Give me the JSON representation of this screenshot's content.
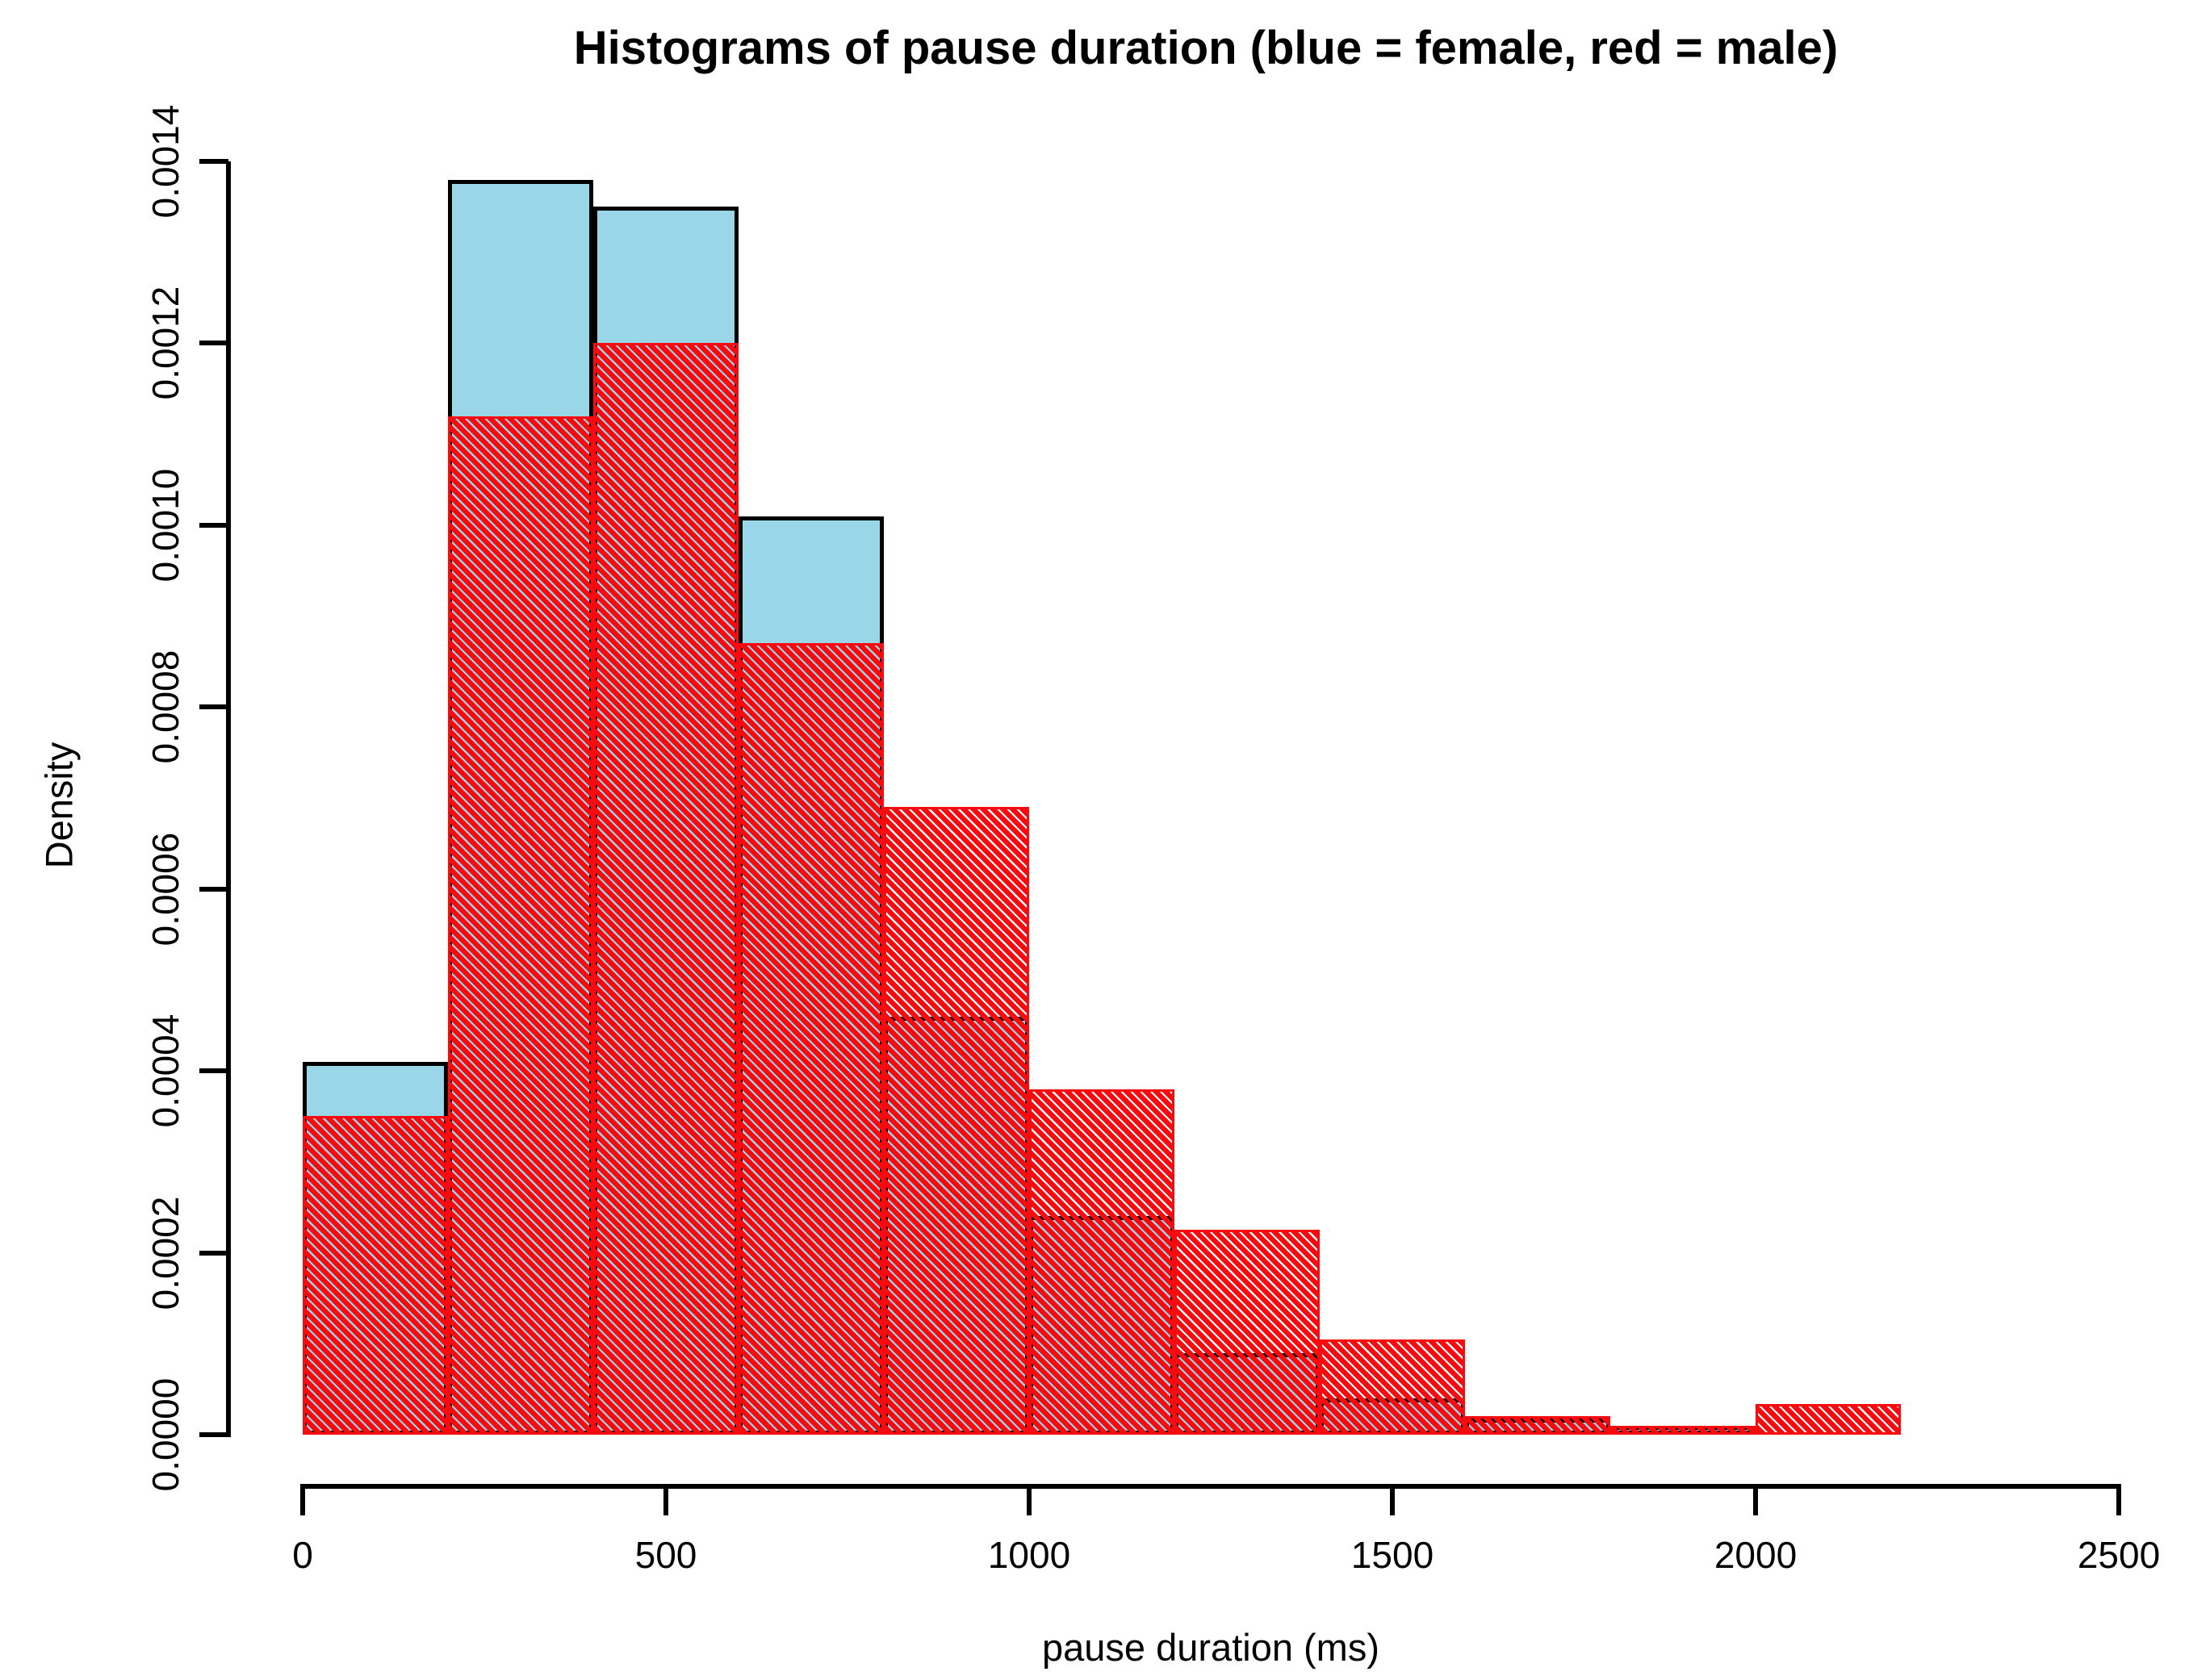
{
  "title": "Histograms of pause duration (blue = female, red = male)",
  "x_axis": {
    "label": "pause duration (ms)",
    "tick_labels": [
      "0",
      "500",
      "1000",
      "1500",
      "2000",
      "2500"
    ],
    "tick_values": [
      0,
      500,
      1000,
      1500,
      2000,
      2500
    ],
    "range_ms": [
      0,
      2500
    ]
  },
  "y_axis": {
    "label": "Density",
    "tick_labels": [
      "0.0000",
      "0.0002",
      "0.0004",
      "0.0006",
      "0.0008",
      "0.0010",
      "0.0012",
      "0.0014"
    ],
    "tick_values": [
      0.0,
      0.0002,
      0.0004,
      0.0006,
      0.0008,
      0.001,
      0.0012,
      0.0014
    ],
    "range_density": [
      0,
      0.0014
    ]
  },
  "chart_data": {
    "type": "histogram",
    "title": "Histograms of pause duration (blue = female, red = male)",
    "xlabel": "pause duration (ms)",
    "ylabel": "Density",
    "xlim": [
      0,
      2500
    ],
    "ylim": [
      0,
      0.0014
    ],
    "grid": false,
    "legend_note": "blue = female, red = male",
    "bin_width_ms": 200,
    "bin_edges_ms": [
      0,
      200,
      400,
      600,
      800,
      1000,
      1200,
      1400,
      1600,
      1800,
      2000,
      2200
    ],
    "series": [
      {
        "name": "female",
        "color_key": "female_blue",
        "fill_style": "solid",
        "border_color": "#000000",
        "densities": [
          0.00041,
          0.00138,
          0.00135,
          0.00101,
          0.00046,
          0.00024,
          9e-05,
          4e-05,
          1.8e-05,
          1e-05,
          0
        ]
      },
      {
        "name": "male",
        "color_key": "male_red",
        "fill_style": "diagonal-hatch-45deg",
        "border_color": "#fa0a0f",
        "densities": [
          0.00035,
          0.00112,
          0.0012,
          0.00087,
          0.00069,
          0.00038,
          0.000225,
          0.000105,
          2e-05,
          1e-05,
          3.4e-05
        ]
      }
    ]
  },
  "colors": {
    "female_blue": "#99d7e8",
    "male_red": "#fa0a0f",
    "axis_black": "#000000",
    "background": "#ffffff"
  }
}
